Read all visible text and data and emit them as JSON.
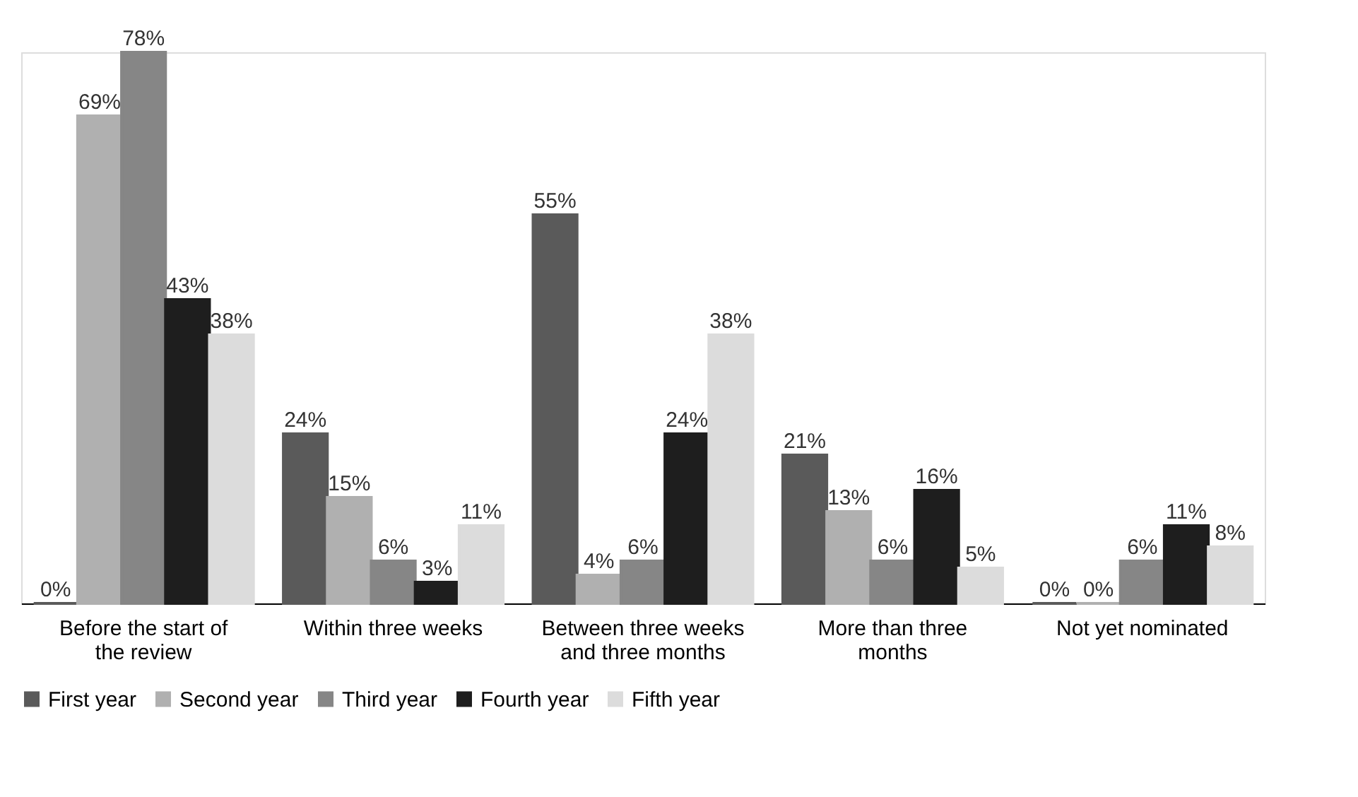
{
  "chart_data": {
    "type": "bar",
    "categories": [
      "Before the start of the review",
      "Within three weeks",
      "Between three weeks and three months",
      "More than three months",
      "Not yet nominated"
    ],
    "series": [
      {
        "name": "First year",
        "color": "#5a5a5a",
        "values": [
          0,
          24,
          55,
          21,
          0
        ],
        "value_labels": [
          "0%",
          "24%",
          "55%",
          "21%",
          "0%"
        ]
      },
      {
        "name": "Second year",
        "color": "#b0b0b0",
        "values": [
          69,
          15,
          4,
          13,
          0
        ],
        "value_labels": [
          "69%",
          "15%",
          "4%",
          "13%",
          "0%"
        ]
      },
      {
        "name": "Third year",
        "color": "#868686",
        "values": [
          78,
          6,
          6,
          6,
          6
        ],
        "value_labels": [
          "78%",
          "6%",
          "6%",
          "6%",
          "6%"
        ]
      },
      {
        "name": "Fourth year",
        "color": "#1e1e1e",
        "values": [
          43,
          3,
          24,
          16,
          11
        ],
        "value_labels": [
          "43%",
          "3%",
          "24%",
          "16%",
          "11%"
        ]
      },
      {
        "name": "Fifth year",
        "color": "#dcdcdc",
        "values": [
          38,
          11,
          38,
          5,
          8
        ],
        "value_labels": [
          "38%",
          "11%",
          "38%",
          "5%",
          "8%"
        ]
      }
    ],
    "legend": "bottom",
    "grid": false
  }
}
